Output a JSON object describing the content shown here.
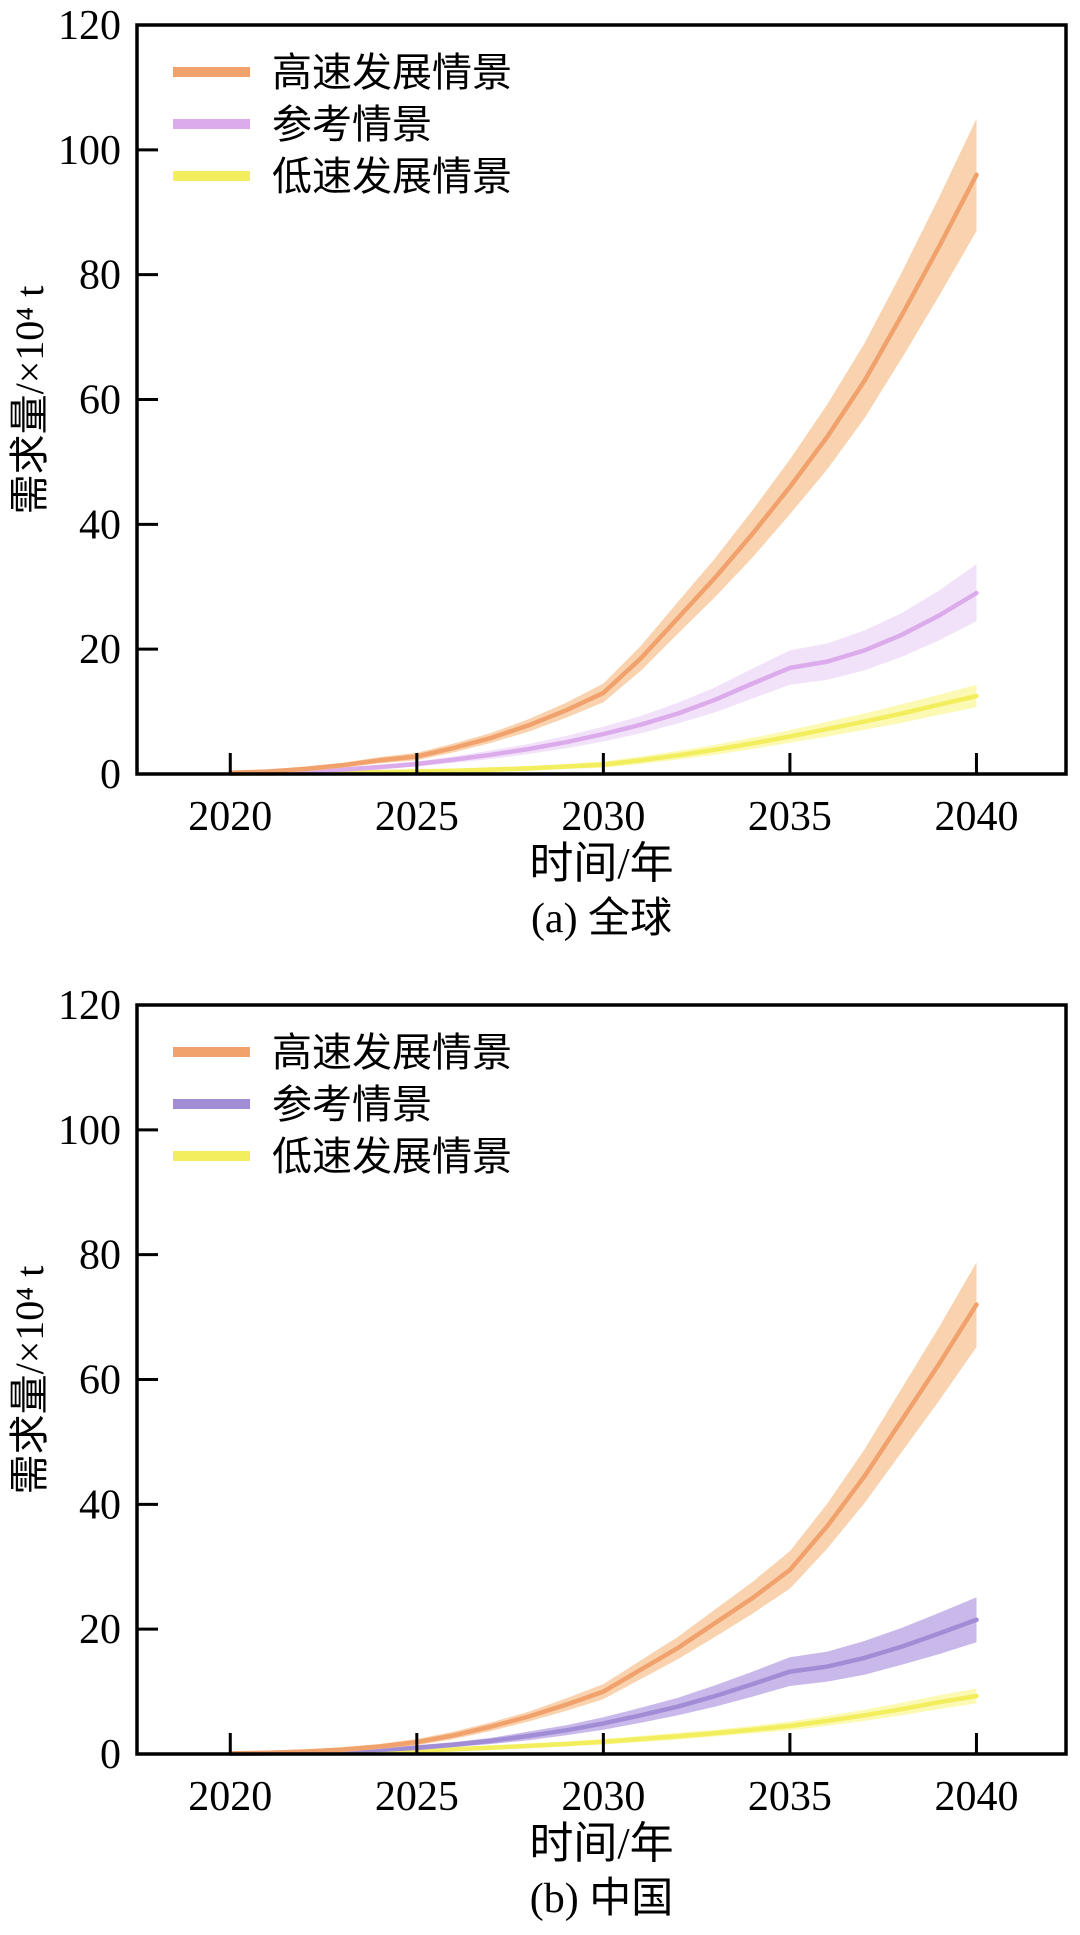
{
  "page": {
    "background": "#ffffff",
    "axis_color": "#000000"
  },
  "chart_data": [
    {
      "type": "line",
      "region_caption": "(a) 全球",
      "xlabel": "时间/年",
      "ylabel": "需求量/×10⁴ t",
      "xlim": [
        2017.5,
        2042.4
      ],
      "ylim": [
        0,
        120
      ],
      "x_ticks": [
        "2020",
        "2025",
        "2030",
        "2035",
        "2040"
      ],
      "x_tick_values": [
        2020,
        2025,
        2030,
        2035,
        2040
      ],
      "y_ticks": [
        "0",
        "20",
        "40",
        "60",
        "80",
        "100",
        "120"
      ],
      "y_tick_values": [
        0,
        20,
        40,
        60,
        80,
        100,
        120
      ],
      "grid": false,
      "legend_position": "upper-left",
      "x": [
        2020,
        2021,
        2022,
        2023,
        2024,
        2025,
        2026,
        2027,
        2028,
        2029,
        2030,
        2031,
        2032,
        2033,
        2034,
        2035,
        2036,
        2037,
        2038,
        2039,
        2040
      ],
      "series": [
        {
          "name": "高速发展情景",
          "color": "#F1A26C",
          "band_color": "#F8CBA1",
          "values": [
            0.2,
            0.4,
            0.8,
            1.4,
            2.2,
            2.8,
            4.2,
            5.8,
            7.8,
            10.2,
            13,
            18.5,
            25,
            31.5,
            38.5,
            46,
            54,
            63,
            73.5,
            84.5,
            96
          ],
          "band_upper": [
            0.5,
            0.7,
            1.2,
            1.8,
            2.7,
            3.4,
            4.9,
            6.6,
            8.8,
            11.4,
            14.5,
            20.5,
            27.6,
            34.6,
            42.3,
            50.4,
            59.2,
            69,
            80.4,
            92.4,
            105
          ],
          "band_lower": [
            0,
            0.1,
            0.4,
            1,
            1.7,
            2.2,
            3.5,
            5,
            6.8,
            9,
            11.5,
            16.5,
            22.5,
            28.4,
            34.7,
            41.6,
            48.8,
            57,
            66.6,
            76.6,
            87
          ]
        },
        {
          "name": "参考情景",
          "color": "#DCABEC",
          "band_color": "#F0DDF8",
          "values": [
            0.1,
            0.2,
            0.4,
            0.7,
            1.1,
            1.6,
            2.3,
            3.1,
            4,
            5.1,
            6.4,
            7.9,
            9.7,
            11.9,
            14.5,
            17,
            18,
            19.8,
            22.3,
            25.4,
            29
          ],
          "band_upper": [
            0.3,
            0.4,
            0.7,
            1,
            1.5,
            2,
            2.8,
            3.8,
            4.8,
            6.1,
            7.6,
            9.3,
            11.4,
            13.9,
            16.9,
            19.8,
            20.9,
            23,
            25.8,
            29.4,
            33.6
          ],
          "band_lower": [
            0,
            0,
            0.1,
            0.4,
            0.7,
            1.2,
            1.8,
            2.4,
            3.2,
            4.1,
            5.2,
            6.5,
            8.1,
            9.9,
            12.1,
            14.3,
            15.1,
            16.6,
            18.8,
            21.4,
            24.5
          ]
        },
        {
          "name": "低速发展情景",
          "color": "#F3EE5E",
          "band_color": "#FAF8A6",
          "values": [
            0.05,
            0.1,
            0.15,
            0.2,
            0.3,
            0.4,
            0.5,
            0.7,
            0.9,
            1.2,
            1.5,
            2.2,
            3,
            3.9,
            4.9,
            6,
            7.2,
            8.4,
            9.7,
            11.1,
            12.5
          ],
          "band_upper": [
            0.4,
            0.4,
            0.5,
            0.5,
            0.6,
            0.8,
            0.9,
            1.1,
            1.3,
            1.6,
            2,
            2.8,
            3.7,
            4.7,
            5.8,
            7,
            8.4,
            9.7,
            11.2,
            12.7,
            14.3
          ],
          "band_lower": [
            0,
            0,
            0,
            0,
            0,
            0.1,
            0.1,
            0.3,
            0.5,
            0.8,
            1,
            1.6,
            2.3,
            3.1,
            4,
            5,
            6,
            7.1,
            8.2,
            9.5,
            10.7
          ]
        }
      ]
    },
    {
      "type": "line",
      "region_caption": "(b) 中国",
      "xlabel": "时间/年",
      "ylabel": "需求量/×10⁴ t",
      "xlim": [
        2017.5,
        2042.4
      ],
      "ylim": [
        0,
        120
      ],
      "x_ticks": [
        "2020",
        "2025",
        "2030",
        "2035",
        "2040"
      ],
      "x_tick_values": [
        2020,
        2025,
        2030,
        2035,
        2040
      ],
      "y_ticks": [
        "0",
        "20",
        "40",
        "60",
        "80",
        "100",
        "120"
      ],
      "y_tick_values": [
        0,
        20,
        40,
        60,
        80,
        100,
        120
      ],
      "grid": false,
      "legend_position": "upper-left",
      "x": [
        2020,
        2021,
        2022,
        2023,
        2024,
        2025,
        2026,
        2027,
        2028,
        2029,
        2030,
        2031,
        2032,
        2033,
        2034,
        2035,
        2036,
        2037,
        2038,
        2039,
        2040
      ],
      "series": [
        {
          "name": "高速发展情景",
          "color": "#F1A26C",
          "band_color": "#F8CBA1",
          "values": [
            0.1,
            0.2,
            0.4,
            0.7,
            1.2,
            1.9,
            3,
            4.4,
            6,
            7.9,
            10,
            13.5,
            17,
            21,
            25,
            29.5,
            36.5,
            44.5,
            53.5,
            62.5,
            72
          ],
          "band_upper": [
            0.4,
            0.5,
            0.7,
            1.1,
            1.6,
            2.4,
            3.6,
            5.1,
            6.8,
            8.9,
            11.2,
            15,
            18.8,
            23.2,
            27.6,
            32.5,
            40.1,
            48.8,
            58.6,
            68.4,
            78.8
          ],
          "band_lower": [
            0,
            0,
            0.1,
            0.3,
            0.8,
            1.4,
            2.4,
            3.7,
            5.2,
            6.9,
            8.8,
            12,
            15.2,
            18.8,
            22.5,
            26.5,
            32.9,
            40.2,
            48.4,
            56.6,
            65.2
          ]
        },
        {
          "name": "参考情景",
          "color": "#A18CD6",
          "band_color": "#BFADE6",
          "values": [
            0.05,
            0.1,
            0.2,
            0.4,
            0.65,
            1,
            1.5,
            2.1,
            2.9,
            3.8,
            4.9,
            6.2,
            7.6,
            9.3,
            11.2,
            13.2,
            14,
            15.4,
            17.2,
            19.3,
            21.5
          ],
          "band_upper": [
            0.3,
            0.3,
            0.4,
            0.7,
            1,
            1.4,
            1.9,
            2.6,
            3.6,
            4.6,
            5.9,
            7.4,
            9,
            11,
            13.2,
            15.5,
            16.4,
            18.1,
            20.2,
            22.6,
            25.1
          ],
          "band_lower": [
            0,
            0,
            0,
            0.1,
            0.4,
            0.6,
            1.1,
            1.6,
            2.2,
            3,
            3.9,
            5,
            6.2,
            7.6,
            9.2,
            10.9,
            11.6,
            12.7,
            14.3,
            16,
            17.9
          ]
        },
        {
          "name": "低速发展情景",
          "color": "#F3EE5E",
          "band_color": "#FAF8A6",
          "values": [
            0.03,
            0.08,
            0.15,
            0.25,
            0.4,
            0.55,
            0.75,
            1,
            1.3,
            1.6,
            1.95,
            2.4,
            2.85,
            3.35,
            3.9,
            4.5,
            5.3,
            6.2,
            7.2,
            8.3,
            9.3
          ],
          "band_upper": [
            0.3,
            0.3,
            0.4,
            0.5,
            0.7,
            0.9,
            1.1,
            1.4,
            1.7,
            2,
            2.4,
            2.9,
            3.4,
            3.9,
            4.5,
            5.2,
            6.1,
            7.1,
            8.2,
            9.4,
            10.5
          ],
          "band_lower": [
            0,
            0,
            0,
            0,
            0.1,
            0.3,
            0.4,
            0.7,
            0.9,
            1.2,
            1.5,
            1.9,
            2.3,
            2.8,
            3.3,
            3.8,
            4.5,
            5.3,
            6.2,
            7.2,
            8.1
          ]
        }
      ]
    }
  ]
}
